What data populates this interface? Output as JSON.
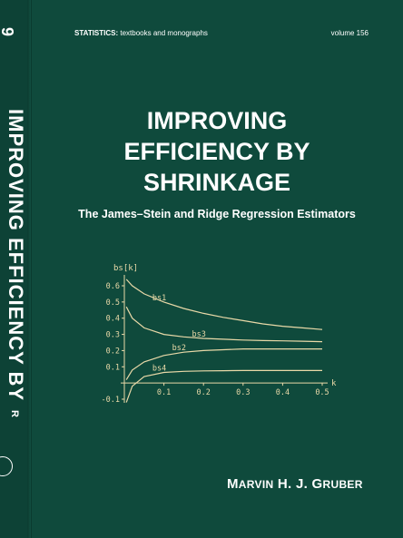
{
  "spine": {
    "number": "9",
    "title": "IMPROVING EFFICIENCY BY",
    "author_fragment": "R"
  },
  "cover": {
    "series": "STATISTICS:",
    "series_rest": " textbooks and monographs",
    "volume": "volume 156",
    "title_line1": "IMPROVING",
    "title_line2": "EFFICIENCY BY",
    "title_line3": "SHRINKAGE",
    "subtitle": "The James–Stein and Ridge Regression Estimators",
    "author_first": "M",
    "author_first_rest": "ARVIN",
    "author_middle": " H. J. ",
    "author_last": "G",
    "author_last_rest": "RUBER"
  },
  "colors": {
    "background": "#0f4a3c",
    "plot_lines": "#e9d9a8",
    "text": "#ffffff"
  },
  "chart_data": {
    "type": "line",
    "ylabel": "bs[k]",
    "xlabel": "k",
    "xlim": [
      0,
      0.5
    ],
    "ylim": [
      -0.1,
      0.6
    ],
    "x_ticks": [
      "0.1",
      "0.2",
      "0.3",
      "0.4",
      "0.5"
    ],
    "y_ticks": [
      "-0.1",
      "0.1",
      "0.2",
      "0.3",
      "0.4",
      "0.5",
      "0.6"
    ],
    "series": [
      {
        "name": "bs1",
        "x": [
          0.005,
          0.02,
          0.05,
          0.1,
          0.15,
          0.2,
          0.25,
          0.3,
          0.35,
          0.4,
          0.45,
          0.5
        ],
        "values": [
          0.64,
          0.6,
          0.55,
          0.5,
          0.46,
          0.43,
          0.405,
          0.385,
          0.365,
          0.35,
          0.34,
          0.33
        ]
      },
      {
        "name": "bs3",
        "x": [
          0.005,
          0.02,
          0.05,
          0.1,
          0.15,
          0.2,
          0.25,
          0.3,
          0.35,
          0.4,
          0.45,
          0.5
        ],
        "values": [
          0.47,
          0.4,
          0.34,
          0.3,
          0.285,
          0.275,
          0.27,
          0.265,
          0.262,
          0.26,
          0.258,
          0.255
        ]
      },
      {
        "name": "bs2",
        "x": [
          0.005,
          0.02,
          0.05,
          0.1,
          0.15,
          0.2,
          0.25,
          0.3,
          0.35,
          0.4,
          0.45,
          0.5
        ],
        "values": [
          0.02,
          0.08,
          0.13,
          0.17,
          0.19,
          0.2,
          0.205,
          0.21,
          0.21,
          0.21,
          0.21,
          0.21
        ]
      },
      {
        "name": "bs4",
        "x": [
          0.005,
          0.02,
          0.05,
          0.1,
          0.15,
          0.2,
          0.25,
          0.3,
          0.35,
          0.4,
          0.45,
          0.5
        ],
        "values": [
          -0.12,
          -0.02,
          0.04,
          0.065,
          0.072,
          0.075,
          0.076,
          0.077,
          0.077,
          0.077,
          0.077,
          0.077
        ]
      }
    ]
  }
}
